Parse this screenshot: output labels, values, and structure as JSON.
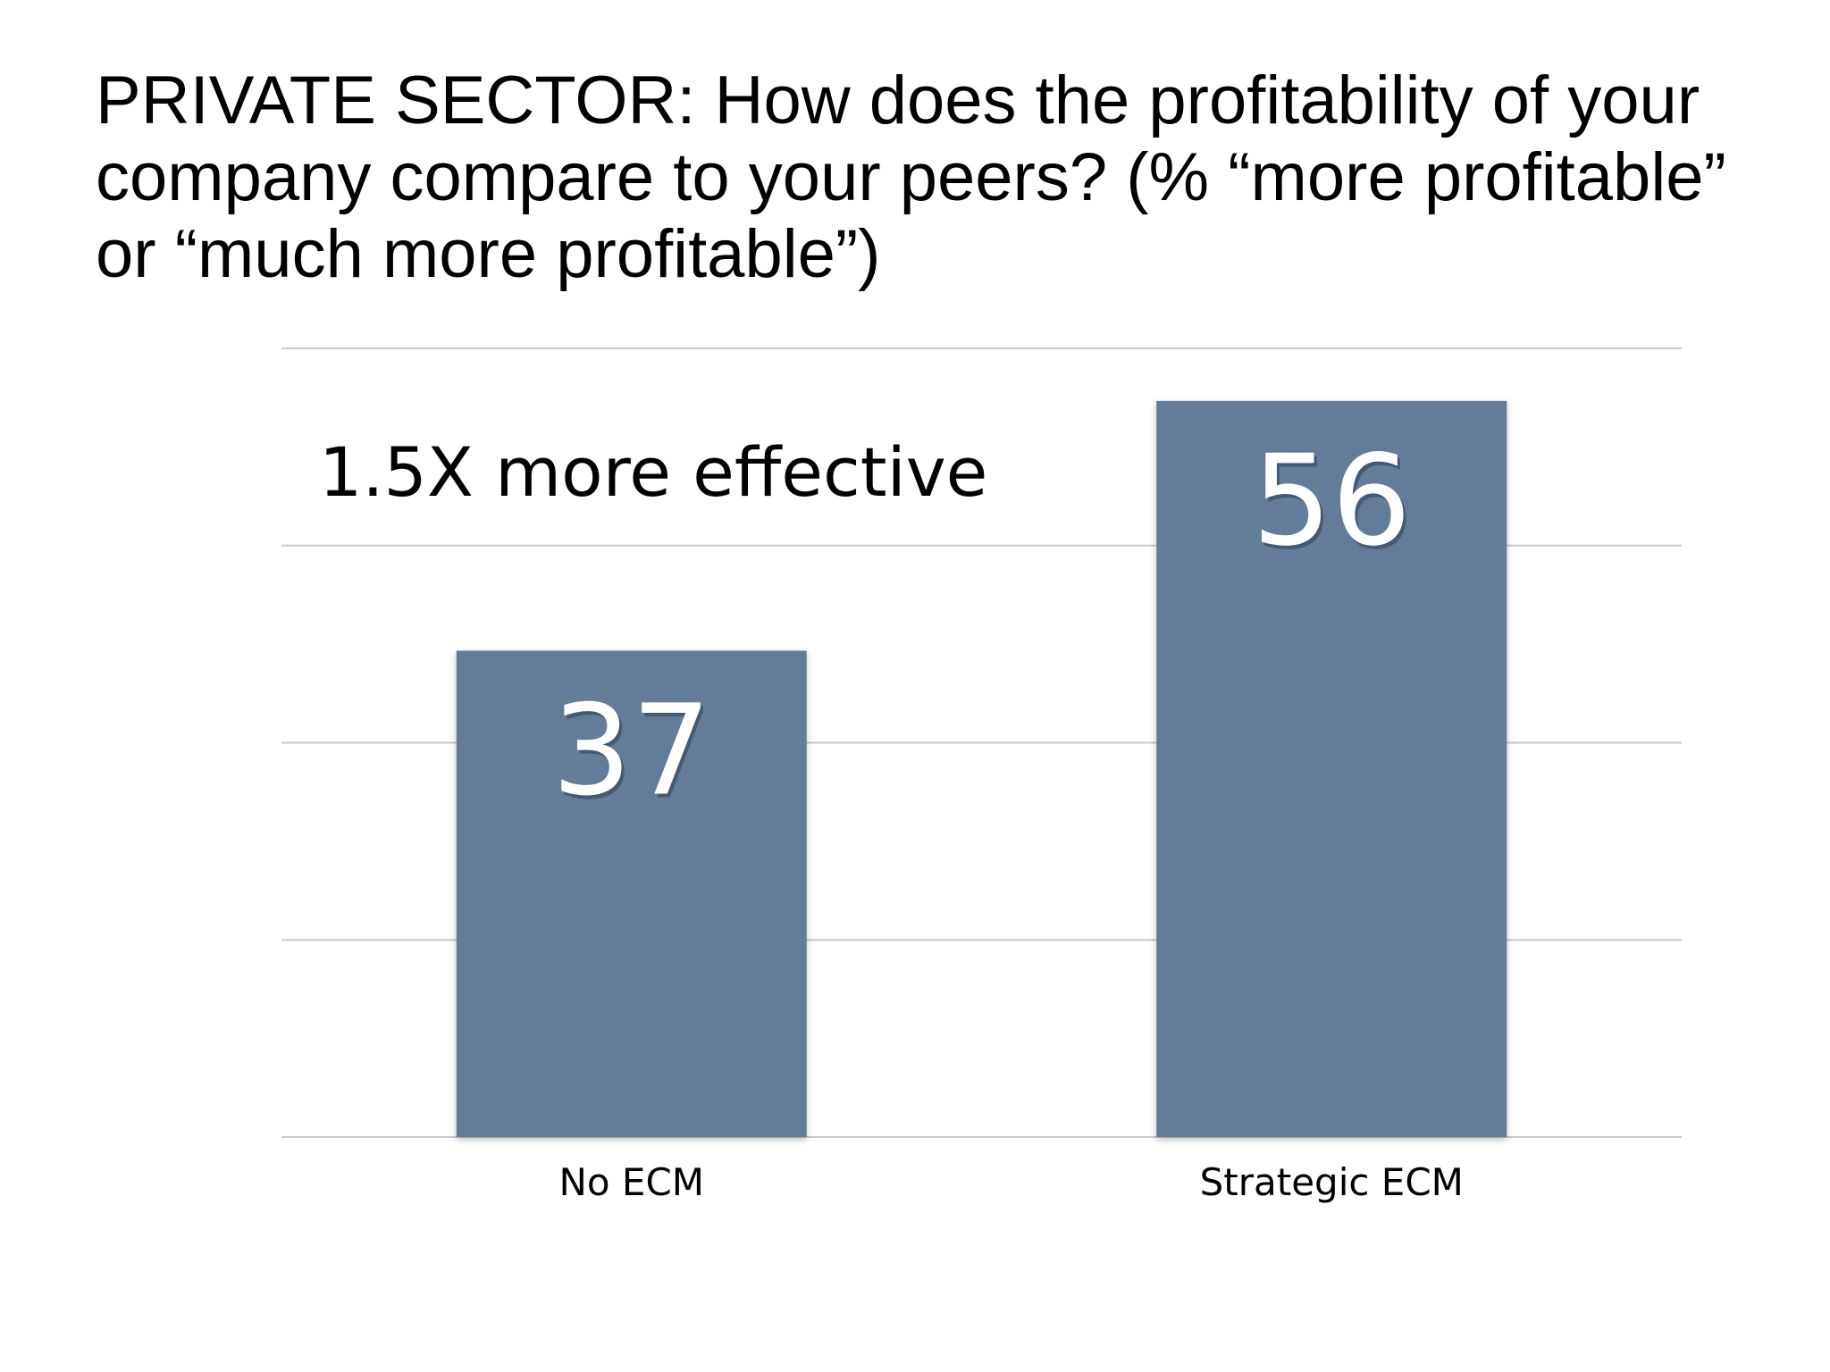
{
  "chart_data": {
    "type": "bar",
    "title": "PRIVATE SECTOR:  How does the profitability of your company compare to your peers? (% “more profitable” or “much more profitable”)",
    "title_lines": [
      "PRIVATE SECTOR:  How does the profitability of your",
      "company compare to your peers? (% “more profitable”",
      "or “much more profitable”)"
    ],
    "categories": [
      "No ECM",
      "Strategic ECM"
    ],
    "values": [
      37,
      56
    ],
    "value_labels": [
      "37",
      "56"
    ],
    "annotation": "1.5X more effective",
    "xlabel": "",
    "ylabel": "",
    "ylim": [
      0,
      60
    ],
    "gridline_values": [
      0,
      15,
      30,
      45,
      60
    ],
    "grid": true,
    "bar_color": "#627b99"
  }
}
